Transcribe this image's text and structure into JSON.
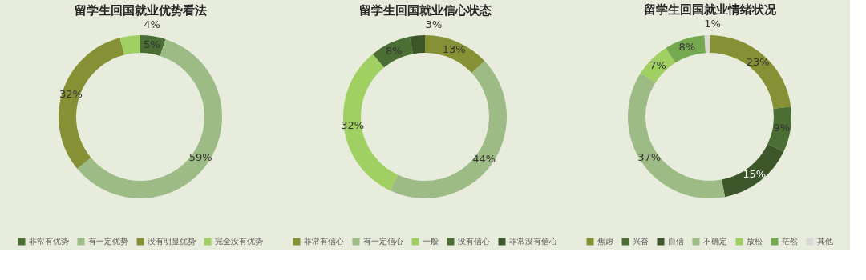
{
  "chart_data": [
    {
      "type": "donut",
      "title": "留学生回国就业优势看法",
      "categories": [
        "非常有优势",
        "有一定优势",
        "没有明显优势",
        "完全没有优势"
      ],
      "values": [
        5,
        59,
        32,
        4
      ],
      "colors": [
        "#4a6e34",
        "#9dbb85",
        "#869035",
        "#a0cf62"
      ],
      "value_labels": [
        "5%",
        "59%",
        "32%",
        "4%"
      ],
      "legend": "bottom"
    },
    {
      "type": "donut",
      "title": "留学生回国就业信心状态",
      "categories": [
        "非常有信心",
        "有一定信心",
        "一般",
        "没有信心",
        "非常没有信心"
      ],
      "values": [
        13,
        44,
        32,
        8,
        3
      ],
      "colors": [
        "#869035",
        "#9dbb85",
        "#a0cf62",
        "#4a6e34",
        "#3c5529"
      ],
      "value_labels": [
        "13%",
        "44%",
        "32%",
        "8%",
        "3%"
      ],
      "legend": "bottom"
    },
    {
      "type": "donut",
      "title": "留学生回国就业情绪状况",
      "categories": [
        "焦虑",
        "兴奋",
        "自信",
        "不确定",
        "放松",
        "茫然",
        "其他"
      ],
      "values": [
        23,
        9,
        15,
        37,
        7,
        8,
        1
      ],
      "colors": [
        "#869035",
        "#4a6e34",
        "#3c5529",
        "#9dbb85",
        "#a0cf62",
        "#75a94f",
        "#d9d9d9"
      ],
      "value_labels": [
        "23%",
        "9%",
        "15%",
        "37%",
        "7%",
        "8%",
        "1%"
      ],
      "legend": "bottom"
    }
  ]
}
